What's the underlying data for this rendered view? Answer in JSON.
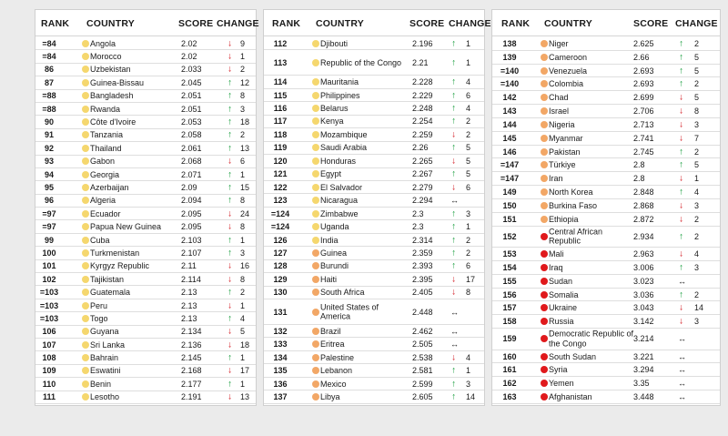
{
  "headers": {
    "rank": "RANK",
    "country": "COUNTRY",
    "score": "SCORE",
    "change": "CHANGE"
  },
  "colors": {
    "yellow": "#f5d76e",
    "orange": "#f2a766",
    "red": "#e0191c",
    "up": "#1a9e3f",
    "down": "#d4232a"
  },
  "columns": [
    {
      "rows": [
        {
          "rank": "=84",
          "country": "Angola",
          "score": "2.02",
          "dir": "down",
          "change": "9",
          "level": "yellow"
        },
        {
          "rank": "=84",
          "country": "Morocco",
          "score": "2.02",
          "dir": "down",
          "change": "1",
          "level": "yellow"
        },
        {
          "rank": "86",
          "country": "Uzbekistan",
          "score": "2.033",
          "dir": "down",
          "change": "2",
          "level": "yellow"
        },
        {
          "rank": "87",
          "country": "Guinea-Bissau",
          "score": "2.045",
          "dir": "up",
          "change": "12",
          "level": "yellow"
        },
        {
          "rank": "=88",
          "country": "Bangladesh",
          "score": "2.051",
          "dir": "up",
          "change": "8",
          "level": "yellow"
        },
        {
          "rank": "=88",
          "country": "Rwanda",
          "score": "2.051",
          "dir": "up",
          "change": "3",
          "level": "yellow"
        },
        {
          "rank": "90",
          "country": "Côte d'Ivoire",
          "score": "2.053",
          "dir": "up",
          "change": "18",
          "level": "yellow"
        },
        {
          "rank": "91",
          "country": "Tanzania",
          "score": "2.058",
          "dir": "up",
          "change": "2",
          "level": "yellow"
        },
        {
          "rank": "92",
          "country": "Thailand",
          "score": "2.061",
          "dir": "up",
          "change": "13",
          "level": "yellow"
        },
        {
          "rank": "93",
          "country": "Gabon",
          "score": "2.068",
          "dir": "down",
          "change": "6",
          "level": "yellow"
        },
        {
          "rank": "94",
          "country": "Georgia",
          "score": "2.071",
          "dir": "up",
          "change": "1",
          "level": "yellow"
        },
        {
          "rank": "95",
          "country": "Azerbaijan",
          "score": "2.09",
          "dir": "up",
          "change": "15",
          "level": "yellow"
        },
        {
          "rank": "96",
          "country": "Algeria",
          "score": "2.094",
          "dir": "up",
          "change": "8",
          "level": "yellow"
        },
        {
          "rank": "=97",
          "country": "Ecuador",
          "score": "2.095",
          "dir": "down",
          "change": "24",
          "level": "yellow"
        },
        {
          "rank": "=97",
          "country": "Papua New Guinea",
          "score": "2.095",
          "dir": "down",
          "change": "8",
          "level": "yellow"
        },
        {
          "rank": "99",
          "country": "Cuba",
          "score": "2.103",
          "dir": "up",
          "change": "1",
          "level": "yellow"
        },
        {
          "rank": "100",
          "country": "Turkmenistan",
          "score": "2.107",
          "dir": "up",
          "change": "3",
          "level": "yellow"
        },
        {
          "rank": "101",
          "country": "Kyrgyz Republic",
          "score": "2.11",
          "dir": "down",
          "change": "16",
          "level": "yellow"
        },
        {
          "rank": "102",
          "country": "Tajikistan",
          "score": "2.114",
          "dir": "down",
          "change": "8",
          "level": "yellow"
        },
        {
          "rank": "=103",
          "country": "Guatemala",
          "score": "2.13",
          "dir": "up",
          "change": "2",
          "level": "yellow"
        },
        {
          "rank": "=103",
          "country": "Peru",
          "score": "2.13",
          "dir": "down",
          "change": "1",
          "level": "yellow"
        },
        {
          "rank": "=103",
          "country": "Togo",
          "score": "2.13",
          "dir": "up",
          "change": "4",
          "level": "yellow"
        },
        {
          "rank": "106",
          "country": "Guyana",
          "score": "2.134",
          "dir": "down",
          "change": "5",
          "level": "yellow"
        },
        {
          "rank": "107",
          "country": "Sri Lanka",
          "score": "2.136",
          "dir": "down",
          "change": "18",
          "level": "yellow"
        },
        {
          "rank": "108",
          "country": "Bahrain",
          "score": "2.145",
          "dir": "up",
          "change": "1",
          "level": "yellow"
        },
        {
          "rank": "109",
          "country": "Eswatini",
          "score": "2.168",
          "dir": "down",
          "change": "17",
          "level": "yellow"
        },
        {
          "rank": "110",
          "country": "Benin",
          "score": "2.177",
          "dir": "up",
          "change": "1",
          "level": "yellow"
        },
        {
          "rank": "111",
          "country": "Lesotho",
          "score": "2.191",
          "dir": "down",
          "change": "13",
          "level": "yellow"
        }
      ]
    },
    {
      "rows": [
        {
          "rank": "112",
          "country": "Djibouti",
          "score": "2.196",
          "dir": "up",
          "change": "1",
          "level": "yellow"
        },
        {
          "rank": "113",
          "country": "Republic of the Congo",
          "score": "2.21",
          "dir": "up",
          "change": "1",
          "level": "yellow",
          "tall": true
        },
        {
          "rank": "114",
          "country": "Mauritania",
          "score": "2.228",
          "dir": "up",
          "change": "4",
          "level": "yellow"
        },
        {
          "rank": "115",
          "country": "Philippines",
          "score": "2.229",
          "dir": "up",
          "change": "6",
          "level": "yellow"
        },
        {
          "rank": "116",
          "country": "Belarus",
          "score": "2.248",
          "dir": "up",
          "change": "4",
          "level": "yellow"
        },
        {
          "rank": "117",
          "country": "Kenya",
          "score": "2.254",
          "dir": "up",
          "change": "2",
          "level": "yellow"
        },
        {
          "rank": "118",
          "country": "Mozambique",
          "score": "2.259",
          "dir": "down",
          "change": "2",
          "level": "yellow"
        },
        {
          "rank": "119",
          "country": "Saudi Arabia",
          "score": "2.26",
          "dir": "up",
          "change": "5",
          "level": "yellow"
        },
        {
          "rank": "120",
          "country": "Honduras",
          "score": "2.265",
          "dir": "down",
          "change": "5",
          "level": "yellow"
        },
        {
          "rank": "121",
          "country": "Egypt",
          "score": "2.267",
          "dir": "up",
          "change": "5",
          "level": "yellow"
        },
        {
          "rank": "122",
          "country": "El Salvador",
          "score": "2.279",
          "dir": "down",
          "change": "6",
          "level": "yellow"
        },
        {
          "rank": "123",
          "country": "Nicaragua",
          "score": "2.294",
          "dir": "same",
          "change": "",
          "level": "yellow"
        },
        {
          "rank": "=124",
          "country": "Zimbabwe",
          "score": "2.3",
          "dir": "up",
          "change": "3",
          "level": "yellow"
        },
        {
          "rank": "=124",
          "country": "Uganda",
          "score": "2.3",
          "dir": "up",
          "change": "1",
          "level": "yellow"
        },
        {
          "rank": "126",
          "country": "India",
          "score": "2.314",
          "dir": "up",
          "change": "2",
          "level": "yellow"
        },
        {
          "rank": "127",
          "country": "Guinea",
          "score": "2.359",
          "dir": "up",
          "change": "2",
          "level": "orange"
        },
        {
          "rank": "128",
          "country": "Burundi",
          "score": "2.393",
          "dir": "up",
          "change": "6",
          "level": "orange"
        },
        {
          "rank": "129",
          "country": "Haiti",
          "score": "2.395",
          "dir": "down",
          "change": "17",
          "level": "orange"
        },
        {
          "rank": "130",
          "country": "South Africa",
          "score": "2.405",
          "dir": "down",
          "change": "8",
          "level": "orange"
        },
        {
          "rank": "131",
          "country": "United States of America",
          "score": "2.448",
          "dir": "same",
          "change": "",
          "level": "orange",
          "tall": true
        },
        {
          "rank": "132",
          "country": "Brazil",
          "score": "2.462",
          "dir": "same",
          "change": "",
          "level": "orange"
        },
        {
          "rank": "133",
          "country": "Eritrea",
          "score": "2.505",
          "dir": "same",
          "change": "",
          "level": "orange"
        },
        {
          "rank": "134",
          "country": "Palestine",
          "score": "2.538",
          "dir": "down",
          "change": "4",
          "level": "orange"
        },
        {
          "rank": "135",
          "country": "Lebanon",
          "score": "2.581",
          "dir": "up",
          "change": "1",
          "level": "orange"
        },
        {
          "rank": "136",
          "country": "Mexico",
          "score": "2.599",
          "dir": "up",
          "change": "3",
          "level": "orange"
        },
        {
          "rank": "137",
          "country": "Libya",
          "score": "2.605",
          "dir": "up",
          "change": "14",
          "level": "orange"
        }
      ]
    },
    {
      "rows": [
        {
          "rank": "138",
          "country": "Niger",
          "score": "2.625",
          "dir": "up",
          "change": "2",
          "level": "orange"
        },
        {
          "rank": "139",
          "country": "Cameroon",
          "score": "2.66",
          "dir": "up",
          "change": "5",
          "level": "orange"
        },
        {
          "rank": "=140",
          "country": "Venezuela",
          "score": "2.693",
          "dir": "up",
          "change": "5",
          "level": "orange"
        },
        {
          "rank": "=140",
          "country": "Colombia",
          "score": "2.693",
          "dir": "up",
          "change": "2",
          "level": "orange"
        },
        {
          "rank": "142",
          "country": "Chad",
          "score": "2.699",
          "dir": "down",
          "change": "5",
          "level": "orange"
        },
        {
          "rank": "143",
          "country": "Israel",
          "score": "2.706",
          "dir": "down",
          "change": "8",
          "level": "orange"
        },
        {
          "rank": "144",
          "country": "Nigeria",
          "score": "2.713",
          "dir": "down",
          "change": "3",
          "level": "orange"
        },
        {
          "rank": "145",
          "country": "Myanmar",
          "score": "2.741",
          "dir": "down",
          "change": "7",
          "level": "orange"
        },
        {
          "rank": "146",
          "country": "Pakistan",
          "score": "2.745",
          "dir": "up",
          "change": "2",
          "level": "orange"
        },
        {
          "rank": "=147",
          "country": "Türkiye",
          "score": "2.8",
          "dir": "up",
          "change": "5",
          "level": "orange"
        },
        {
          "rank": "=147",
          "country": "Iran",
          "score": "2.8",
          "dir": "down",
          "change": "1",
          "level": "orange"
        },
        {
          "rank": "149",
          "country": "North Korea",
          "score": "2.848",
          "dir": "up",
          "change": "4",
          "level": "orange"
        },
        {
          "rank": "150",
          "country": "Burkina Faso",
          "score": "2.868",
          "dir": "down",
          "change": "3",
          "level": "orange"
        },
        {
          "rank": "151",
          "country": "Ethiopia",
          "score": "2.872",
          "dir": "down",
          "change": "2",
          "level": "orange"
        },
        {
          "rank": "152",
          "country": "Central African Republic",
          "score": "2.934",
          "dir": "up",
          "change": "2",
          "level": "red",
          "tall": true
        },
        {
          "rank": "153",
          "country": "Mali",
          "score": "2.963",
          "dir": "down",
          "change": "4",
          "level": "red"
        },
        {
          "rank": "154",
          "country": "Iraq",
          "score": "3.006",
          "dir": "up",
          "change": "3",
          "level": "red"
        },
        {
          "rank": "155",
          "country": "Sudan",
          "score": "3.023",
          "dir": "same",
          "change": "",
          "level": "red"
        },
        {
          "rank": "156",
          "country": "Somalia",
          "score": "3.036",
          "dir": "up",
          "change": "2",
          "level": "red"
        },
        {
          "rank": "157",
          "country": "Ukraine",
          "score": "3.043",
          "dir": "down",
          "change": "14",
          "level": "red"
        },
        {
          "rank": "158",
          "country": "Russia",
          "score": "3.142",
          "dir": "down",
          "change": "3",
          "level": "red"
        },
        {
          "rank": "159",
          "country": "Democratic Republic of the Congo",
          "score": "3.214",
          "dir": "same",
          "change": "",
          "level": "red",
          "tall": true
        },
        {
          "rank": "160",
          "country": "South Sudan",
          "score": "3.221",
          "dir": "same",
          "change": "",
          "level": "red"
        },
        {
          "rank": "161",
          "country": "Syria",
          "score": "3.294",
          "dir": "same",
          "change": "",
          "level": "red"
        },
        {
          "rank": "162",
          "country": "Yemen",
          "score": "3.35",
          "dir": "same",
          "change": "",
          "level": "red"
        },
        {
          "rank": "163",
          "country": "Afghanistan",
          "score": "3.448",
          "dir": "same",
          "change": "",
          "level": "red"
        }
      ]
    }
  ]
}
